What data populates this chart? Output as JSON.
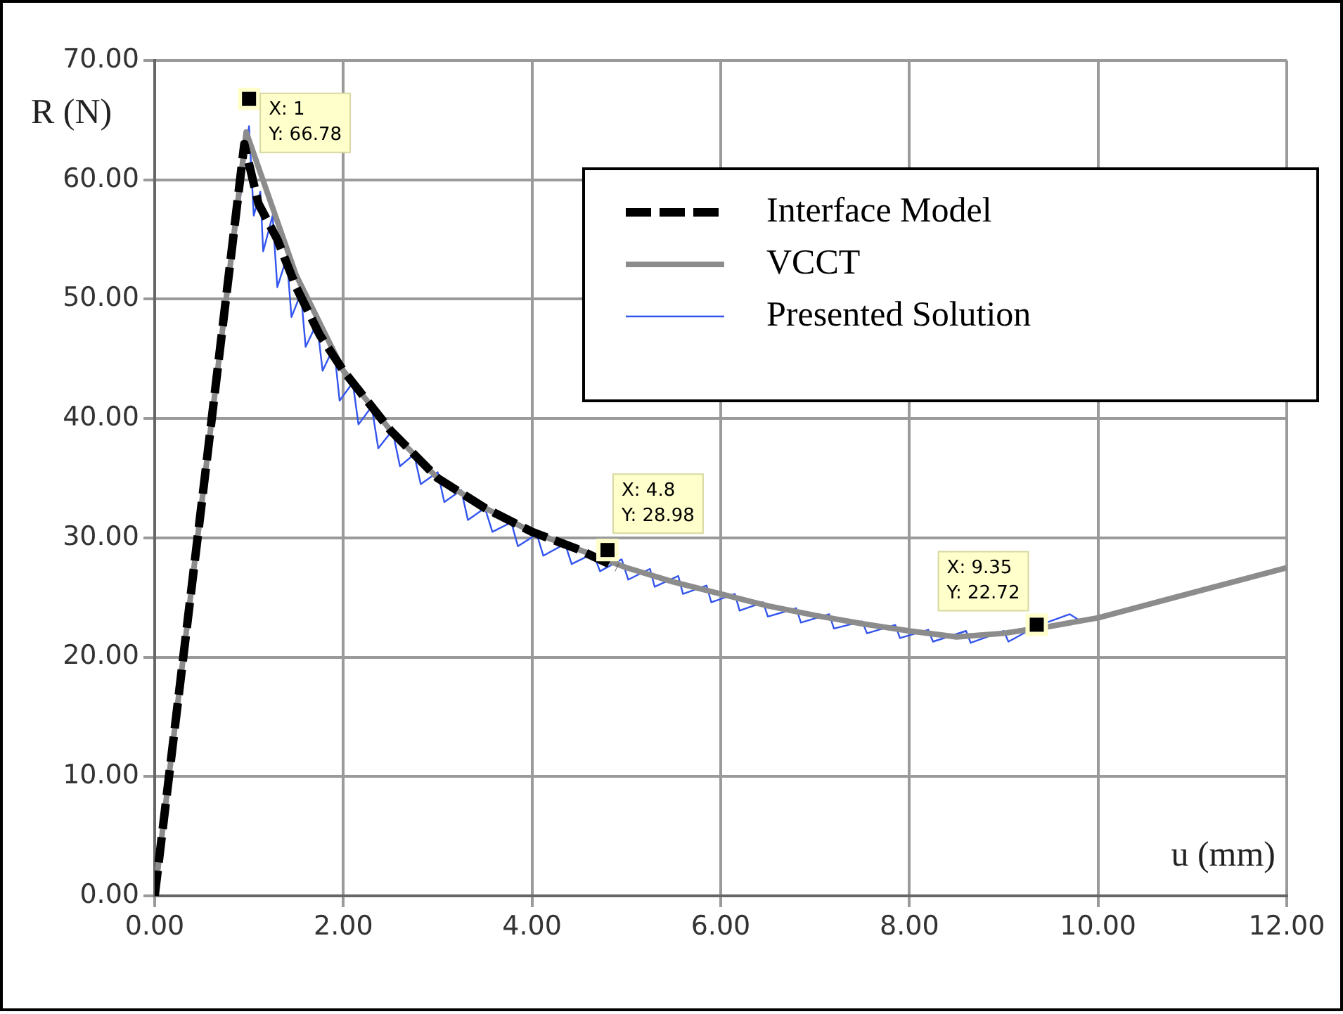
{
  "chart_data": {
    "type": "line",
    "xlabel": "u (mm)",
    "ylabel": "R (N)",
    "xlim": [
      0,
      12
    ],
    "ylim": [
      0,
      70
    ],
    "xticks": [
      {
        "value": 0,
        "label": "0.00"
      },
      {
        "value": 2,
        "label": "2.00"
      },
      {
        "value": 4,
        "label": "4.00"
      },
      {
        "value": 6,
        "label": "6.00"
      },
      {
        "value": 8,
        "label": "8.00"
      },
      {
        "value": 10,
        "label": "10.00"
      },
      {
        "value": 12,
        "label": "12.00"
      }
    ],
    "yticks": [
      {
        "value": 0,
        "label": "0.00"
      },
      {
        "value": 10,
        "label": "10.00"
      },
      {
        "value": 20,
        "label": "20.00"
      },
      {
        "value": 30,
        "label": "30.00"
      },
      {
        "value": 40,
        "label": "40.00"
      },
      {
        "value": 50,
        "label": "50.00"
      },
      {
        "value": 60,
        "label": "60.00"
      },
      {
        "value": 70,
        "label": "70.00"
      }
    ],
    "grid": true,
    "legend": "top right",
    "marker": "none",
    "series": [
      {
        "name": "Interface Model",
        "color": "#000000",
        "line_style": "dashed",
        "x": [
          0,
          0.5,
          0.95,
          1.1,
          1.3,
          1.5,
          1.75,
          2,
          2.5,
          3,
          3.5,
          4,
          4.5,
          4.9
        ],
        "values": [
          0,
          33,
          63,
          58,
          55,
          51,
          47,
          44,
          39,
          35,
          32.5,
          30.5,
          29,
          27.5
        ]
      },
      {
        "name": "VCCT",
        "color": "#8c8c8c",
        "line_style": "solid",
        "x": [
          0,
          0.5,
          0.97,
          1.5,
          2,
          2.5,
          3,
          3.5,
          4,
          4.5,
          5,
          5.5,
          6,
          6.5,
          7,
          7.5,
          8,
          8.5,
          9,
          9.5,
          10,
          11,
          12
        ],
        "values": [
          0,
          33,
          64,
          52,
          44,
          39,
          35,
          32.5,
          30.5,
          29,
          27.5,
          26.3,
          25.3,
          24.3,
          23.5,
          22.8,
          22.2,
          21.7,
          22,
          22.6,
          23.3,
          25.4,
          27.5
        ]
      },
      {
        "name": "Presented Solution",
        "color": "#3355ee",
        "line_style": "solid",
        "x": [
          0,
          1.0,
          1.05,
          1.12,
          1.15,
          1.25,
          1.3,
          1.4,
          1.45,
          1.55,
          1.6,
          1.72,
          1.78,
          1.9,
          1.96,
          2.1,
          2.16,
          2.3,
          2.37,
          2.52,
          2.6,
          2.75,
          2.82,
          3.0,
          3.07,
          3.25,
          3.32,
          3.5,
          3.58,
          3.78,
          3.85,
          4.05,
          4.12,
          4.35,
          4.42,
          4.65,
          4.72,
          4.95,
          5.02,
          5.25,
          5.3,
          5.55,
          5.6,
          5.85,
          5.9,
          6.15,
          6.2,
          6.45,
          6.5,
          6.8,
          6.85,
          7.15,
          7.2,
          7.5,
          7.55,
          7.85,
          7.9,
          8.2,
          8.25,
          8.6,
          8.65,
          9.0,
          9.05,
          9.35,
          9.7,
          9.8
        ],
        "values": [
          0,
          64.5,
          57,
          59,
          54,
          57,
          51,
          53.5,
          48.5,
          50.5,
          46,
          48,
          44,
          46,
          41.5,
          43,
          39.5,
          41,
          37.5,
          39,
          36,
          37,
          34.5,
          35.5,
          33,
          34,
          31.5,
          32.5,
          30.5,
          31.3,
          29.3,
          30.3,
          28.5,
          29.5,
          27.8,
          28.7,
          27.2,
          28.2,
          26.5,
          27.4,
          25.9,
          26.8,
          25.3,
          26,
          24.6,
          25.3,
          23.9,
          24.6,
          23.4,
          24.1,
          22.9,
          23.6,
          22.4,
          23,
          22,
          22.7,
          21.6,
          22.3,
          21.3,
          22.2,
          21.2,
          22.2,
          21.3,
          22.6,
          23.6,
          23.1
        ]
      }
    ],
    "annotations": [
      {
        "text": "X: 1\nY: 66.78",
        "x": 1,
        "y": 66.78
      },
      {
        "text": "X: 4.8\nY: 28.98",
        "x": 4.8,
        "y": 28.98
      },
      {
        "text": "X: 9.35\nY: 22.72",
        "x": 9.35,
        "y": 22.72
      }
    ]
  }
}
